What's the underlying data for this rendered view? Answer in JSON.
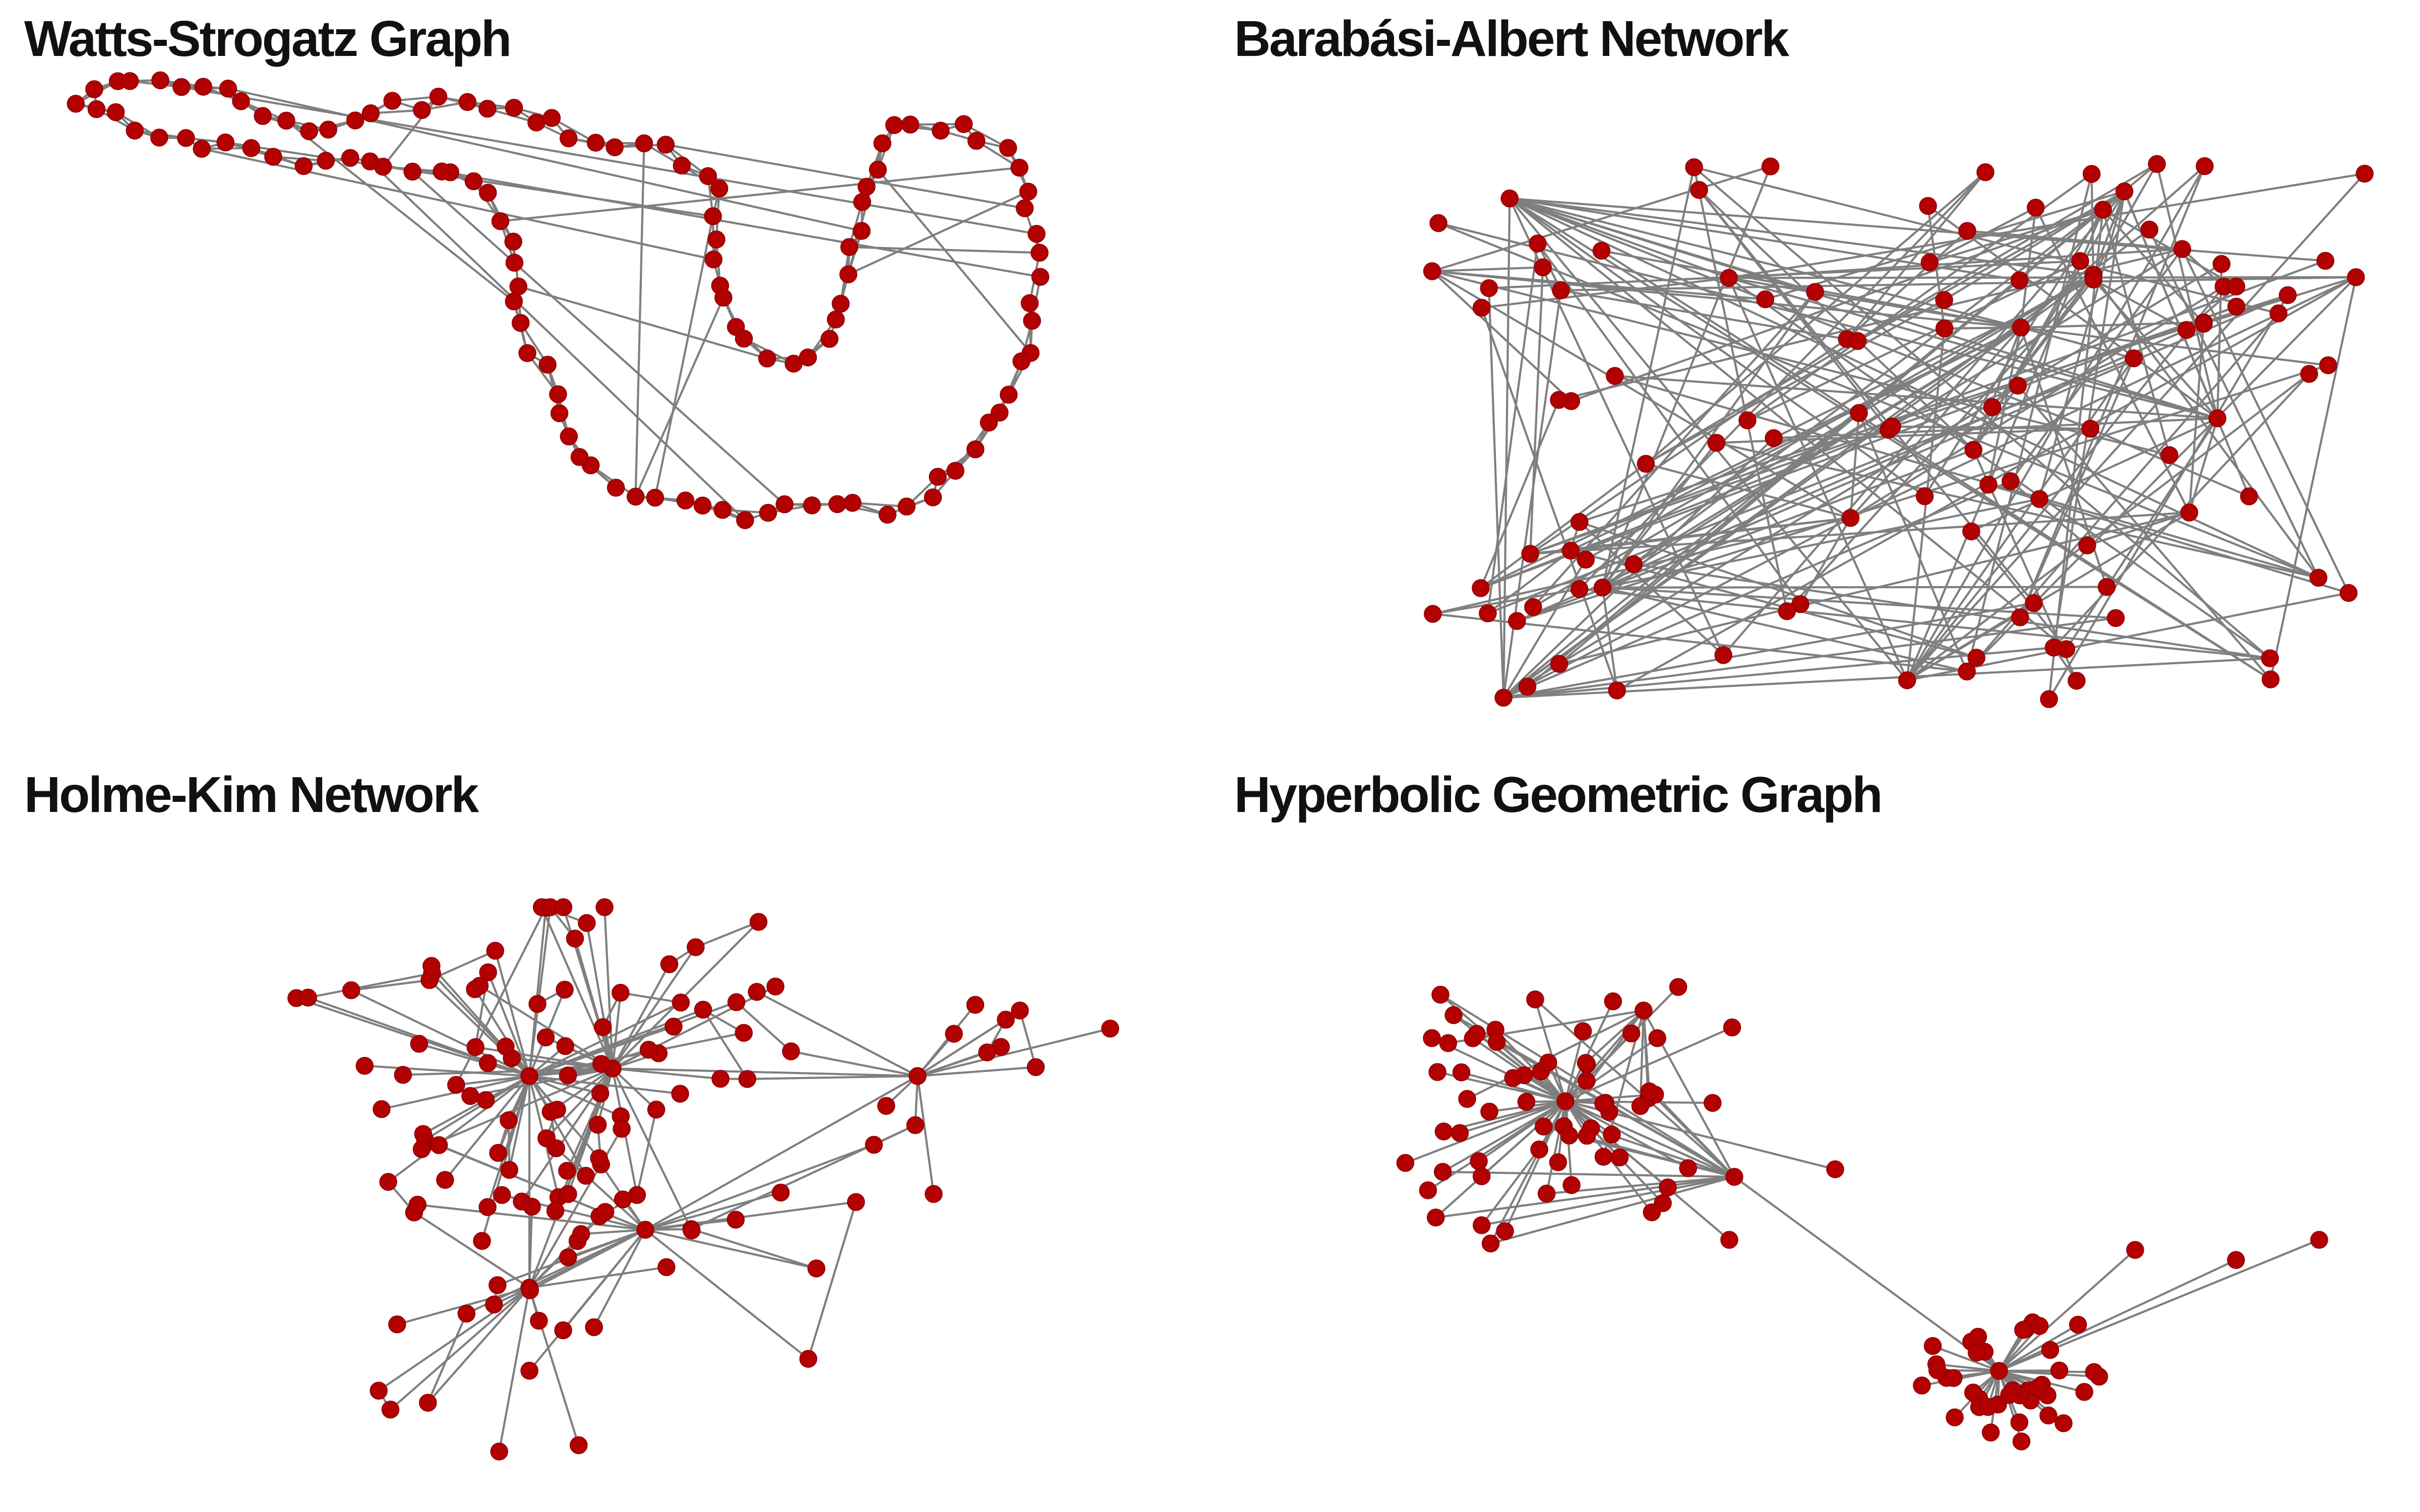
{
  "figure": {
    "panels": [
      {
        "id": "watts-strogatz",
        "title": "Watts-Strogatz Graph",
        "node_count": 120,
        "graph_style": "ring-with-shortcuts"
      },
      {
        "id": "barabasi-albert",
        "title": "Barabási-Albert Network",
        "node_count": 110,
        "graph_style": "preferential-attachment"
      },
      {
        "id": "holme-kim",
        "title": "Holme-Kim Network",
        "node_count": 130,
        "graph_style": "hubs-with-triangles"
      },
      {
        "id": "hyperbolic",
        "title": "Hyperbolic Geometric Graph",
        "node_count": 110,
        "graph_style": "two-star-clusters"
      }
    ],
    "colors": {
      "node": "#b30000",
      "node_outline": "#8a0000",
      "edge": "#7f7f7f",
      "background": "#ffffff",
      "title": "#111111"
    }
  }
}
